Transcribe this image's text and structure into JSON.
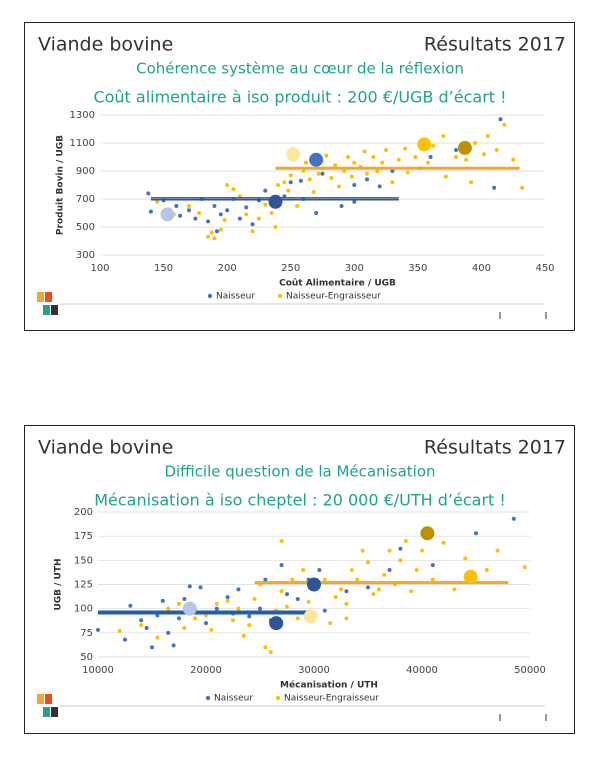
{
  "chart_data": [
    {
      "type": "scatter",
      "header_left": "Viande bovine",
      "header_right": "Résultats 2017",
      "title": "Cohérence système au cœur de la réflexion",
      "subtitle": "Coût alimentaire à iso produit : 200 €/UGB d’écart !",
      "x_label": "Coût Alimentaire / UGB",
      "y_label": "Produit Bovin / UGB",
      "xlim": [
        100,
        450
      ],
      "xticks": [
        100,
        150,
        200,
        250,
        300,
        350,
        400,
        450
      ],
      "ylim": [
        300,
        1300
      ],
      "yticks": [
        300,
        500,
        700,
        900,
        1100,
        1300
      ],
      "grid": true,
      "series": [
        {
          "name": "Naisseur",
          "color": "#4472c4",
          "x": [
            138,
            140,
            150,
            160,
            163,
            170,
            175,
            180,
            185,
            190,
            192,
            195,
            200,
            205,
            210,
            215,
            220,
            225,
            230,
            240,
            245,
            250,
            258,
            260,
            270,
            275,
            290,
            300,
            310,
            320,
            330,
            380,
            410,
            415,
            360,
            300
          ],
          "values": [
            740,
            610,
            690,
            650,
            580,
            620,
            560,
            700,
            540,
            650,
            470,
            590,
            620,
            700,
            560,
            640,
            520,
            690,
            760,
            650,
            720,
            820,
            830,
            700,
            600,
            880,
            650,
            800,
            840,
            790,
            900,
            1050,
            780,
            1270,
            1000,
            680
          ]
        },
        {
          "name": "Naisseur-Engraisseur",
          "color": "#ffc000",
          "x": [
            145,
            158,
            170,
            178,
            185,
            188,
            190,
            195,
            198,
            200,
            205,
            210,
            215,
            220,
            225,
            230,
            235,
            238,
            240,
            245,
            248,
            250,
            255,
            260,
            262,
            265,
            268,
            272,
            275,
            278,
            282,
            285,
            288,
            292,
            295,
            298,
            300,
            305,
            308,
            310,
            315,
            318,
            322,
            325,
            330,
            335,
            340,
            342,
            348,
            352,
            358,
            362,
            370,
            372,
            380,
            388,
            395,
            402,
            405,
            412,
            418,
            425,
            432,
            392
          ],
          "values": [
            680,
            590,
            650,
            600,
            430,
            460,
            420,
            480,
            550,
            800,
            770,
            720,
            590,
            470,
            560,
            660,
            600,
            500,
            800,
            820,
            760,
            870,
            650,
            900,
            960,
            840,
            750,
            880,
            920,
            1010,
            850,
            940,
            790,
            900,
            1000,
            860,
            960,
            930,
            1040,
            880,
            1000,
            900,
            960,
            1050,
            820,
            980,
            1060,
            890,
            1000,
            920,
            960,
            1080,
            1150,
            860,
            1000,
            980,
            1100,
            1020,
            1150,
            1050,
            1230,
            980,
            780,
            820
          ]
        }
      ],
      "highlights": [
        {
          "x": 153,
          "y": 590,
          "color": "#b4c7e7"
        },
        {
          "x": 238,
          "y": 680,
          "color": "#2f5597"
        },
        {
          "x": 270,
          "y": 980,
          "color": "#4472c4"
        },
        {
          "x": 252,
          "y": 1020,
          "color": "#ffe699"
        },
        {
          "x": 355,
          "y": 1090,
          "color": "#ffc000"
        },
        {
          "x": 387,
          "y": 1065,
          "color": "#bf9000"
        }
      ],
      "reference_lines": [
        {
          "x": [
            140,
            335
          ],
          "y": 695,
          "color": "#2f5597",
          "width": 1.5
        },
        {
          "x": [
            140,
            335
          ],
          "y": 708,
          "color": "#2f5597",
          "width": 1.5
        },
        {
          "x": [
            238,
            430
          ],
          "y": 920,
          "color": "#f0a830",
          "width": 3
        }
      ]
    },
    {
      "type": "scatter",
      "header_left": "Viande bovine",
      "header_right": "Résultats 2017",
      "title": "Difficile question de la Mécanisation",
      "subtitle": "Mécanisation à iso cheptel : 20 000 €/UTH d’écart !",
      "x_label": "Mécanisation / UTH",
      "y_label": "UGB / UTH",
      "xlim": [
        10000,
        50000
      ],
      "xticks": [
        10000,
        20000,
        30000,
        40000,
        50000
      ],
      "ylim": [
        50,
        200
      ],
      "yticks": [
        50,
        75,
        100,
        125,
        150,
        175,
        200
      ],
      "grid": true,
      "series": [
        {
          "name": "Naisseur",
          "color": "#4472c4",
          "x": [
            10000,
            12500,
            13000,
            14000,
            14500,
            15000,
            15500,
            16000,
            16500,
            17000,
            17500,
            18000,
            18500,
            19000,
            19500,
            20000,
            21000,
            22000,
            22500,
            23000,
            24000,
            25000,
            25500,
            26000,
            27000,
            27500,
            28500,
            29500,
            30500,
            31000,
            33000,
            35000,
            37000,
            38000,
            45000,
            48500,
            41000
          ],
          "values": [
            78,
            68,
            103,
            88,
            80,
            60,
            93,
            108,
            75,
            62,
            90,
            110,
            123,
            98,
            122,
            85,
            100,
            112,
            95,
            120,
            92,
            100,
            130,
            88,
            145,
            115,
            110,
            130,
            140,
            98,
            118,
            122,
            140,
            162,
            178,
            193,
            145
          ]
        },
        {
          "name": "Naisseur-Engraisseur",
          "color": "#ffc000",
          "x": [
            12000,
            14000,
            15500,
            16500,
            17500,
            18000,
            19000,
            20000,
            20500,
            21000,
            22000,
            22500,
            23000,
            23500,
            24000,
            24500,
            25000,
            25500,
            26000,
            26500,
            27000,
            27500,
            28000,
            28500,
            29000,
            29500,
            30000,
            31000,
            31500,
            32000,
            32500,
            33000,
            33500,
            34000,
            34500,
            35000,
            35500,
            36000,
            36500,
            37000,
            37500,
            38000,
            38500,
            39000,
            39500,
            40000,
            41000,
            42000,
            43000,
            44000,
            46000,
            47000,
            49500,
            27000,
            33000
          ],
          "values": [
            77,
            83,
            70,
            100,
            105,
            80,
            90,
            93,
            78,
            105,
            108,
            88,
            100,
            72,
            83,
            110,
            125,
            60,
            55,
            98,
            118,
            102,
            130,
            90,
            140,
            107,
            95,
            130,
            85,
            112,
            120,
            105,
            140,
            130,
            160,
            148,
            115,
            120,
            135,
            160,
            125,
            150,
            170,
            118,
            140,
            160,
            130,
            168,
            120,
            152,
            140,
            160,
            143,
            170,
            90
          ]
        }
      ],
      "highlights": [
        {
          "x": 18500,
          "y": 100,
          "color": "#b4c7e7"
        },
        {
          "x": 26500,
          "y": 85,
          "color": "#2f5597"
        },
        {
          "x": 30000,
          "y": 125,
          "color": "#2f5597"
        },
        {
          "x": 29700,
          "y": 92,
          "color": "#ffe699"
        },
        {
          "x": 40500,
          "y": 178,
          "color": "#bf9000"
        },
        {
          "x": 44500,
          "y": 133,
          "color": "#ffc000"
        }
      ],
      "reference_lines": [
        {
          "x": [
            10000,
            30000
          ],
          "y": 96,
          "color": "#1f5fa8",
          "width": 4
        },
        {
          "x": [
            24500,
            48000
          ],
          "y": 127,
          "color": "#f0a830",
          "width": 3
        }
      ]
    }
  ]
}
